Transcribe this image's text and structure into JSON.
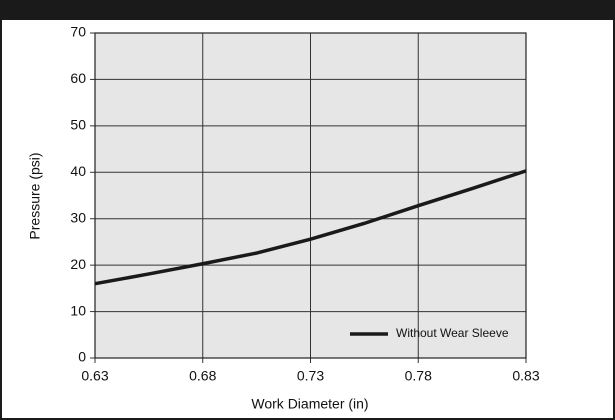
{
  "chart_data": {
    "type": "line",
    "x_label": "Work Diameter (in)",
    "y_label": "Pressure (psi)",
    "x": [
      0.63,
      0.655,
      0.68,
      0.705,
      0.73,
      0.755,
      0.78,
      0.805,
      0.83
    ],
    "series": [
      {
        "name": "Without Wear Sleeve",
        "color": "#1a1a1a",
        "values": [
          16,
          18.1,
          20.3,
          22.6,
          25.6,
          29,
          32.8,
          36.5,
          40.3
        ]
      }
    ],
    "xlim": [
      0.63,
      0.83
    ],
    "xticks": [
      0.63,
      0.68,
      0.73,
      0.78,
      0.83
    ],
    "ylim": [
      0,
      70
    ],
    "yticks": [
      0,
      10,
      20,
      30,
      40,
      50,
      60,
      70
    ],
    "grid": true,
    "legend": "lower right"
  }
}
